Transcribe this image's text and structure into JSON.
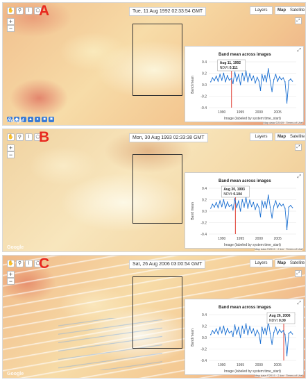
{
  "panels": [
    {
      "letter": "A",
      "timestamp": "Tue, 11 Aug 1992 02:33:54 GMT",
      "tooltip": {
        "date": "Aug 11, 1992",
        "label": "NDVI:",
        "value": "0.111"
      },
      "striped": false,
      "show_bottom_tools": true,
      "attribution": "Map data ©2019 · Terms of Use"
    },
    {
      "letter": "B",
      "timestamp": "Mon, 30 Aug 1993 02:33:38 GMT",
      "tooltip": {
        "date": "Aug 30, 1993",
        "label": "NDVI:",
        "value": "0.104"
      },
      "striped": false,
      "show_bottom_tools": false,
      "attribution": "Map data ©2019 · 2 km · Terms of Use"
    },
    {
      "letter": "C",
      "timestamp": "Sat, 26 Aug 2006 03:00:54 GMT",
      "tooltip": {
        "date": "Aug 26, 2006",
        "label": "NDVI:",
        "value": "0.09"
      },
      "striped": true,
      "show_bottom_tools": false,
      "attribution": "Map data ©2019 · 2 km · Terms of Use"
    }
  ],
  "controls": {
    "layers_label": "Layers",
    "map_label": "Map",
    "satellite_label": "Satellite",
    "zoom_in": "+",
    "zoom_out": "−",
    "toolbar_icons": [
      "hand-icon",
      "marker-icon",
      "polyline-icon",
      "polygon-icon"
    ],
    "toolbar_glyphs": [
      "✋",
      "⚲",
      "⌇",
      "⬠"
    ],
    "bottom_tool_glyphs": [
      "⚙",
      "◆",
      "◐",
      "▲",
      "●",
      "■",
      "✱"
    ],
    "google_label": "Google"
  },
  "colors": {
    "panel_letter": "#e8281e",
    "series_line": "#1a6fd1",
    "highlight_line": "#e03c31",
    "grid": "#e6e6e6"
  },
  "chart_data": {
    "type": "line",
    "title": "Band mean across images",
    "xlabel": "Image (labeled by system:time_start)",
    "ylabel": "Band mean",
    "ylim": [
      -0.4,
      0.4
    ],
    "yticks": [
      "0.4",
      "0.2",
      "0.0",
      "-0.2",
      "-0.4"
    ],
    "xticks": [
      "1990",
      "1995",
      "2000",
      "2005"
    ],
    "xlim": [
      1986.5,
      2010
    ],
    "series": [
      {
        "x": [
          1987.0,
          1987.5,
          1988.0,
          1988.5,
          1989.0,
          1989.5,
          1990.0,
          1990.5,
          1991.0,
          1991.5,
          1992.0,
          1992.6,
          1993.0,
          1993.5,
          1994.0,
          1994.5,
          1995.0,
          1995.5,
          1996.0,
          1996.5,
          1997.0,
          1997.5,
          1998.0,
          1998.5,
          1999.0,
          1999.5,
          2000.0,
          2000.4,
          2000.8,
          2001.2,
          2001.6,
          2002.0,
          2002.5,
          2003.0,
          2003.5,
          2004.0,
          2004.5,
          2005.0,
          2005.5,
          2006.0,
          2006.5,
          2007.0,
          2007.5,
          2008.0,
          2008.5,
          2009.0
        ],
        "y": [
          0.05,
          0.12,
          0.07,
          0.15,
          0.06,
          0.18,
          0.08,
          0.2,
          0.05,
          0.16,
          0.08,
          0.11,
          0.02,
          0.22,
          0.06,
          0.18,
          0.0,
          0.2,
          0.07,
          0.24,
          0.05,
          0.19,
          0.08,
          0.15,
          0.03,
          0.13,
          0.06,
          -0.1,
          0.18,
          0.07,
          0.16,
          0.05,
          0.28,
          0.07,
          -0.12,
          0.09,
          0.18,
          0.06,
          0.14,
          0.09,
          0.12,
          0.05,
          -0.32,
          0.07,
          0.1,
          0.06
        ]
      }
    ],
    "highlight_x": [
      1992.6,
      1993.65,
      2006.65
    ],
    "axis_title": "Band mean"
  }
}
